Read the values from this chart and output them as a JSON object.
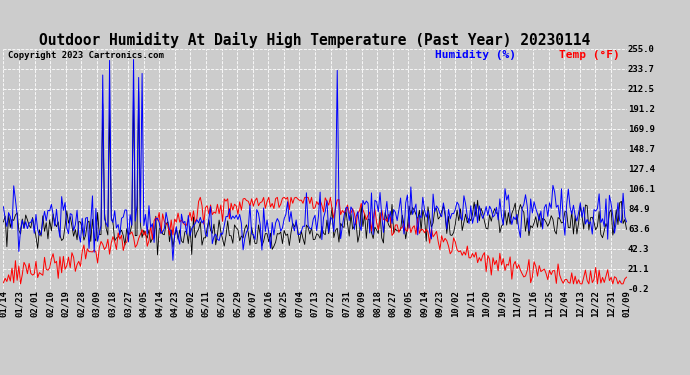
{
  "title": "Outdoor Humidity At Daily High Temperature (Past Year) 20230114",
  "copyright": "Copyright 2023 Cartronics.com",
  "legend_humidity": "Humidity (%)",
  "legend_temp": "Temp (°F)",
  "ylabel_values": [
    255.0,
    233.7,
    212.5,
    191.2,
    169.9,
    148.7,
    127.4,
    106.1,
    84.9,
    63.6,
    42.3,
    21.1,
    -0.2
  ],
  "ylim": [
    -0.2,
    255.0
  ],
  "bg_color": "#cccccc",
  "plot_bg": "#cccccc",
  "grid_color": "#ffffff",
  "title_color": "#000000",
  "copyright_color": "#000000",
  "humidity_color": "#0000ff",
  "temp_color": "#ff0000",
  "black_color": "#000000",
  "title_fontsize": 10.5,
  "tick_fontsize": 6.5,
  "legend_fontsize": 8,
  "copyright_fontsize": 6.5,
  "x_labels": [
    "01/14",
    "01/23",
    "02/01",
    "02/10",
    "02/19",
    "02/28",
    "03/09",
    "03/18",
    "03/27",
    "04/05",
    "04/14",
    "04/23",
    "05/02",
    "05/11",
    "05/20",
    "05/29",
    "06/07",
    "06/16",
    "06/25",
    "07/04",
    "07/13",
    "07/22",
    "07/31",
    "08/09",
    "08/18",
    "08/27",
    "09/05",
    "09/14",
    "09/23",
    "10/02",
    "10/11",
    "10/20",
    "10/29",
    "11/07",
    "11/16",
    "11/25",
    "12/04",
    "12/13",
    "12/22",
    "12/31",
    "01/09"
  ]
}
